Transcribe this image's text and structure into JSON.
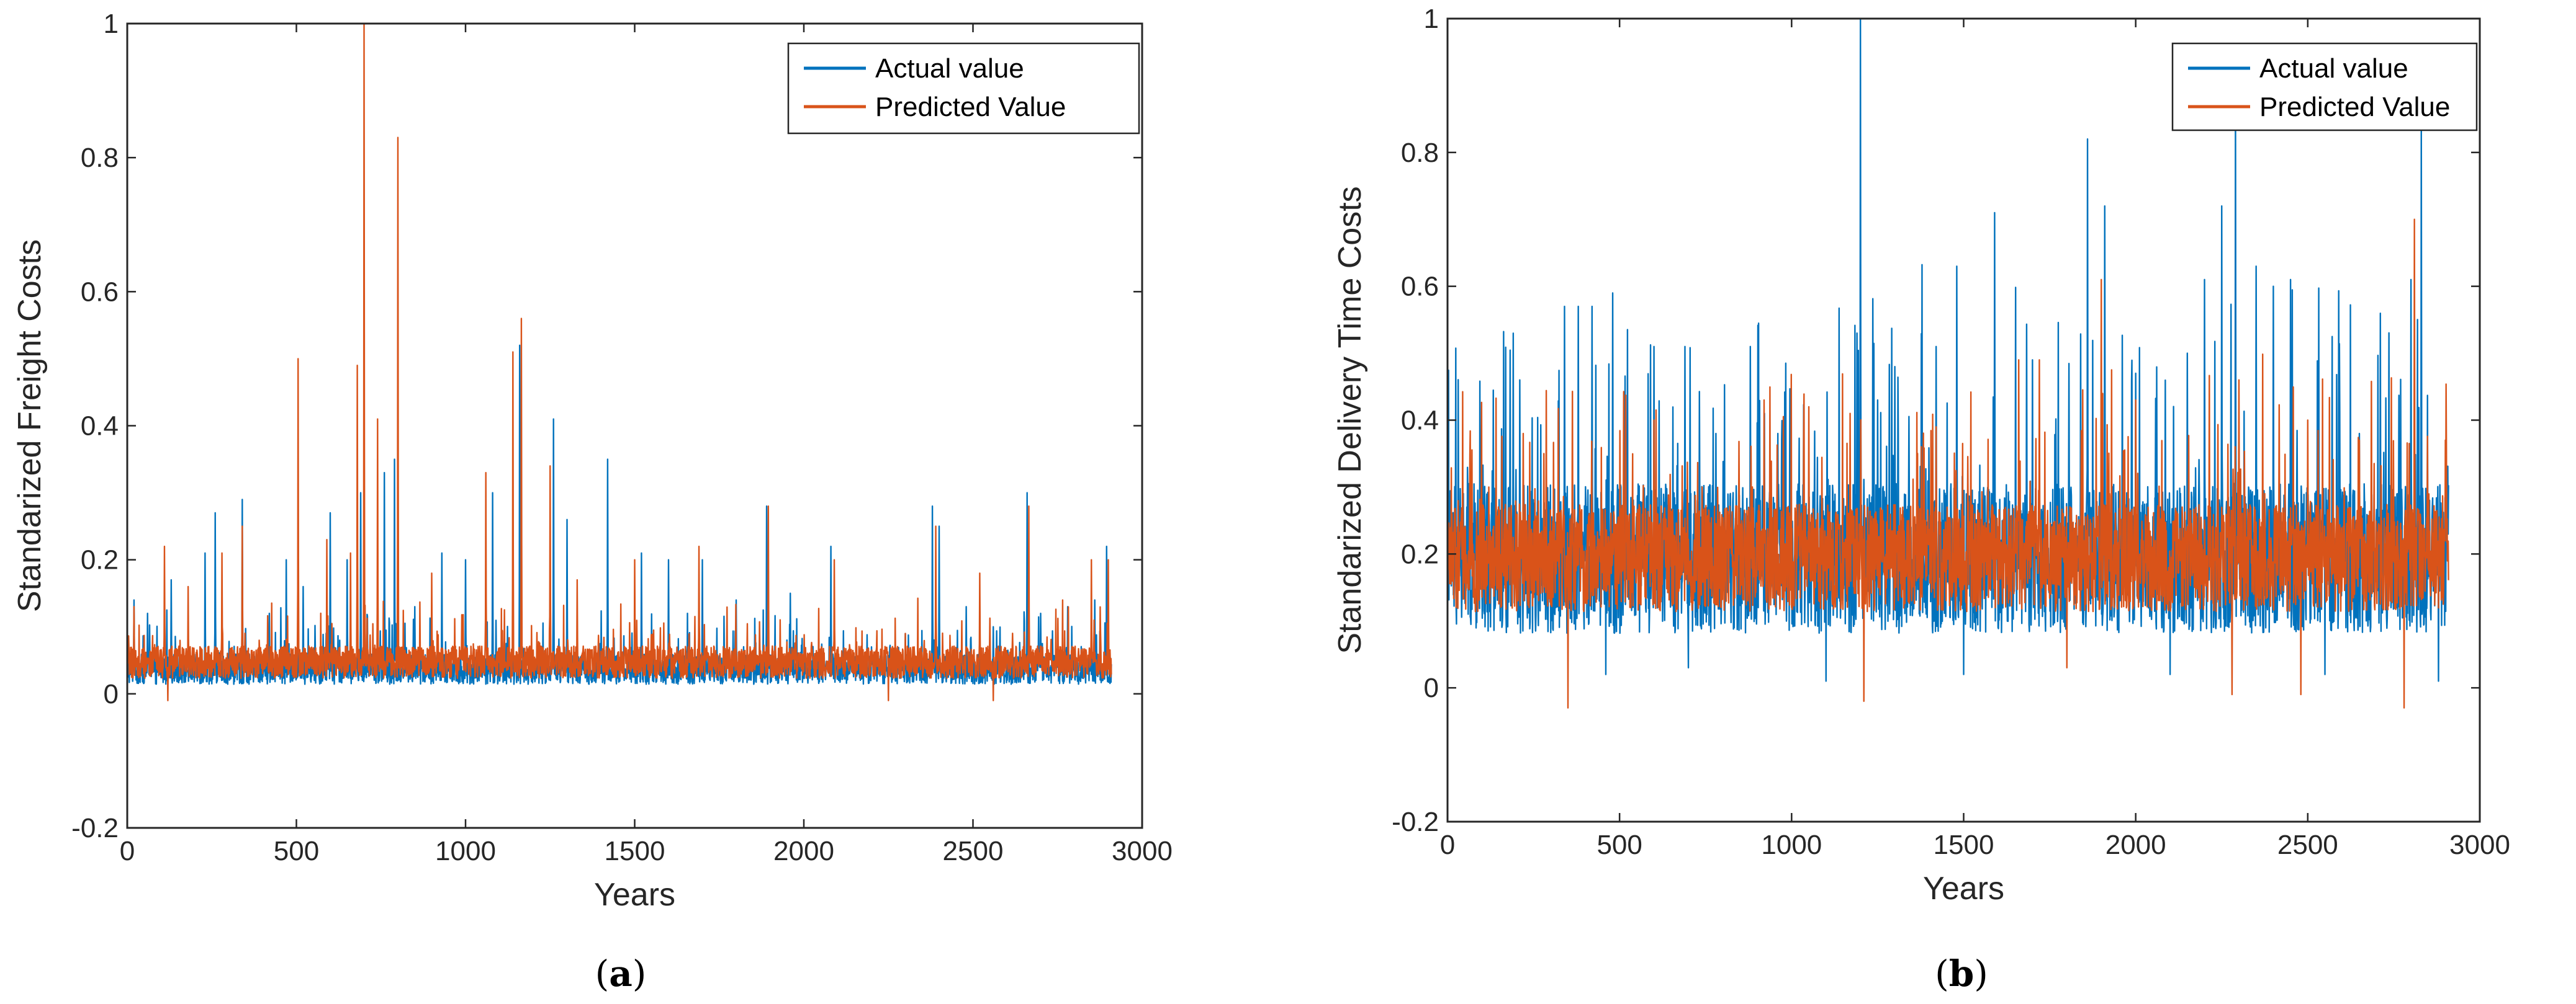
{
  "chart_data": [
    {
      "type": "line",
      "panel": "a",
      "caption_letter": "a",
      "title": "",
      "xlabel": "Years",
      "ylabel": "Standarized Freight Costs",
      "xlim": [
        0,
        3000
      ],
      "ylim": [
        -0.2,
        1
      ],
      "xticks": [
        0,
        500,
        1000,
        1500,
        2000,
        2500,
        3000
      ],
      "yticks": [
        -0.2,
        0,
        0.2,
        0.4,
        0.6,
        0.8,
        1
      ],
      "xtick_labels": [
        "0",
        "500",
        "1000",
        "1500",
        "2000",
        "2500",
        "3000"
      ],
      "ytick_labels": [
        "-0.2",
        "0",
        "0.2",
        "0.4",
        "0.6",
        "0.8",
        "1"
      ],
      "legend": {
        "placement": "top-right",
        "entries": [
          "Actual value",
          "Predicted Value"
        ]
      },
      "series": [
        {
          "name": "Actual value",
          "color": "#0072BD",
          "n_points": 2910,
          "base_level": 0.03,
          "noise": 0.028,
          "peaks": [
            [
              20,
              0.14
            ],
            [
              60,
              0.12
            ],
            [
              130,
              0.17
            ],
            [
              230,
              0.21
            ],
            [
              260,
              0.27
            ],
            [
              340,
              0.29
            ],
            [
              420,
              0.12
            ],
            [
              470,
              0.2
            ],
            [
              520,
              0.16
            ],
            [
              600,
              0.27
            ],
            [
              650,
              0.2
            ],
            [
              690,
              0.3
            ],
            [
              760,
              0.33
            ],
            [
              790,
              0.35
            ],
            [
              850,
              0.13
            ],
            [
              930,
              0.21
            ],
            [
              1000,
              0.2
            ],
            [
              1080,
              0.3
            ],
            [
              1160,
              0.52
            ],
            [
              1260,
              0.41
            ],
            [
              1300,
              0.26
            ],
            [
              1420,
              0.35
            ],
            [
              1520,
              0.21
            ],
            [
              1600,
              0.2
            ],
            [
              1700,
              0.2
            ],
            [
              1800,
              0.14
            ],
            [
              1890,
              0.28
            ],
            [
              1960,
              0.15
            ],
            [
              2080,
              0.22
            ],
            [
              2200,
              0.07
            ],
            [
              2300,
              0.09
            ],
            [
              2380,
              0.28
            ],
            [
              2400,
              0.25
            ],
            [
              2480,
              0.13
            ],
            [
              2560,
              0.1
            ],
            [
              2660,
              0.3
            ],
            [
              2700,
              0.12
            ],
            [
              2780,
              0.13
            ],
            [
              2860,
              0.14
            ],
            [
              2895,
              0.22
            ]
          ]
        },
        {
          "name": "Predicted Value",
          "color": "#D95319",
          "n_points": 2910,
          "base_level": 0.04,
          "noise": 0.03,
          "peaks": [
            [
              20,
              0.13
            ],
            [
              110,
              0.22
            ],
            [
              180,
              0.16
            ],
            [
              280,
              0.21
            ],
            [
              340,
              0.25
            ],
            [
              505,
              0.5
            ],
            [
              590,
              0.23
            ],
            [
              660,
              0.21
            ],
            [
              680,
              0.49
            ],
            [
              700,
              1
            ],
            [
              740,
              0.41
            ],
            [
              800,
              0.83
            ],
            [
              900,
              0.18
            ],
            [
              1060,
              0.33
            ],
            [
              1140,
              0.51
            ],
            [
              1165,
              0.56
            ],
            [
              1250,
              0.34
            ],
            [
              1330,
              0.17
            ],
            [
              1500,
              0.2
            ],
            [
              1690,
              0.22
            ],
            [
              1895,
              0.28
            ],
            [
              2090,
              0.2
            ],
            [
              2300,
              0.09
            ],
            [
              2390,
              0.25
            ],
            [
              2520,
              0.18
            ],
            [
              2665,
              0.28
            ],
            [
              2850,
              0.2
            ],
            [
              2900,
              0.2
            ]
          ],
          "dips": [
            [
              120,
              -0.01
            ],
            [
              2250,
              -0.01
            ],
            [
              2560,
              -0.01
            ]
          ]
        }
      ]
    },
    {
      "type": "line",
      "panel": "b",
      "caption_letter": "b",
      "title": "",
      "xlabel": "Years",
      "ylabel": "Standarized Delivery Time Costs",
      "xlim": [
        0,
        3000
      ],
      "ylim": [
        -0.2,
        1
      ],
      "xticks": [
        0,
        500,
        1000,
        1500,
        2000,
        2500,
        3000
      ],
      "yticks": [
        -0.2,
        0,
        0.2,
        0.4,
        0.6,
        0.8,
        1
      ],
      "xtick_labels": [
        "0",
        "500",
        "1000",
        "1500",
        "2000",
        "2500",
        "3000"
      ],
      "ytick_labels": [
        "-0.2",
        "0",
        "0.2",
        "0.4",
        "0.6",
        "0.8",
        "1"
      ],
      "legend": {
        "placement": "top-right",
        "entries": [
          "Actual value",
          "Predicted Value"
        ]
      },
      "series": [
        {
          "name": "Actual value",
          "color": "#0072BD",
          "n_points": 2910,
          "base_level": 0.16,
          "noise": 0.14,
          "peaks": [
            [
              210,
              0.46
            ],
            [
              340,
              0.57
            ],
            [
              380,
              0.57
            ],
            [
              420,
              0.57
            ],
            [
              460,
              0.59
            ],
            [
              480,
              0.59
            ],
            [
              600,
              0.51
            ],
            [
              690,
              0.51
            ],
            [
              780,
              0.38
            ],
            [
              880,
              0.51
            ],
            [
              960,
              0.38
            ],
            [
              1190,
              0.53
            ],
            [
              1200,
              1
            ],
            [
              1250,
              0.43
            ],
            [
              1300,
              0.48
            ],
            [
              1420,
              0.51
            ],
            [
              1480,
              0.63
            ],
            [
              1590,
              0.71
            ],
            [
              1700,
              0.49
            ],
            [
              1860,
              0.82
            ],
            [
              1910,
              0.72
            ],
            [
              2000,
              0.47
            ],
            [
              2150,
              0.5
            ],
            [
              2200,
              0.61
            ],
            [
              2250,
              0.72
            ],
            [
              2290,
              0.88
            ],
            [
              2350,
              0.63
            ],
            [
              2400,
              0.6
            ],
            [
              2450,
              0.61
            ],
            [
              2550,
              0.44
            ],
            [
              2650,
              0.38
            ],
            [
              2800,
              0.61
            ],
            [
              2830,
              0.84
            ],
            [
              2880,
              0.31
            ]
          ],
          "dips": [
            [
              0,
              0.02
            ],
            [
              460,
              0.02
            ],
            [
              700,
              0.03
            ],
            [
              1100,
              0.01
            ],
            [
              1500,
              0.02
            ],
            [
              2100,
              0.02
            ],
            [
              2550,
              0.02
            ],
            [
              2880,
              0.01
            ]
          ]
        },
        {
          "name": "Predicted Value",
          "color": "#D95319",
          "n_points": 2910,
          "base_level": 0.17,
          "noise": 0.1,
          "peaks": [
            [
              120,
              0.3
            ],
            [
              220,
              0.38
            ],
            [
              280,
              0.35
            ],
            [
              600,
              0.4
            ],
            [
              740,
              0.3
            ],
            [
              920,
              0.43
            ],
            [
              1050,
              0.42
            ],
            [
              1170,
              0.41
            ],
            [
              1420,
              0.39
            ],
            [
              1660,
              0.49
            ],
            [
              1720,
              0.49
            ],
            [
              1900,
              0.61
            ],
            [
              2000,
              0.43
            ],
            [
              2300,
              0.46
            ],
            [
              2500,
              0.4
            ],
            [
              2650,
              0.37
            ],
            [
              2810,
              0.7
            ],
            [
              2900,
              0.37
            ]
          ],
          "dips": [
            [
              350,
              -0.03
            ],
            [
              1210,
              -0.02
            ],
            [
              1800,
              0.03
            ],
            [
              2280,
              -0.01
            ],
            [
              2480,
              -0.01
            ],
            [
              2780,
              -0.03
            ]
          ]
        }
      ]
    }
  ]
}
